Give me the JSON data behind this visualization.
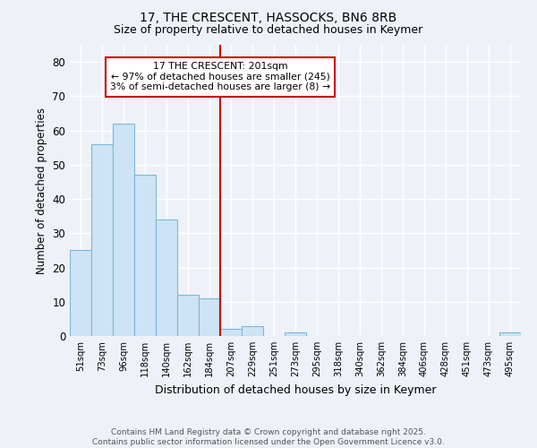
{
  "title1": "17, THE CRESCENT, HASSOCKS, BN6 8RB",
  "title2": "Size of property relative to detached houses in Keymer",
  "xlabel": "Distribution of detached houses by size in Keymer",
  "ylabel": "Number of detached properties",
  "bin_labels": [
    "51sqm",
    "73sqm",
    "96sqm",
    "118sqm",
    "140sqm",
    "162sqm",
    "184sqm",
    "207sqm",
    "229sqm",
    "251sqm",
    "273sqm",
    "295sqm",
    "318sqm",
    "340sqm",
    "362sqm",
    "384sqm",
    "406sqm",
    "428sqm",
    "451sqm",
    "473sqm",
    "495sqm"
  ],
  "bar_heights": [
    25,
    56,
    62,
    47,
    34,
    12,
    11,
    2,
    3,
    0,
    1,
    0,
    0,
    0,
    0,
    0,
    0,
    0,
    0,
    0,
    1
  ],
  "bar_color": "#cce4f5",
  "bar_edge_color": "#7ab8d9",
  "vline_x": 7.0,
  "vline_color": "#cc0000",
  "annotation_text": "17 THE CRESCENT: 201sqm\n← 97% of detached houses are smaller (245)\n3% of semi-detached houses are larger (8) →",
  "annotation_box_color": "#cc0000",
  "ylim": [
    0,
    85
  ],
  "yticks": [
    0,
    10,
    20,
    30,
    40,
    50,
    60,
    70,
    80
  ],
  "footer": "Contains HM Land Registry data © Crown copyright and database right 2025.\nContains public sector information licensed under the Open Government Licence v3.0.",
  "bg_color": "#eef2f8",
  "plot_bg_color": "#eef2f8",
  "grid_color": "#ffffff",
  "title_fontsize": 10,
  "subtitle_fontsize": 9
}
